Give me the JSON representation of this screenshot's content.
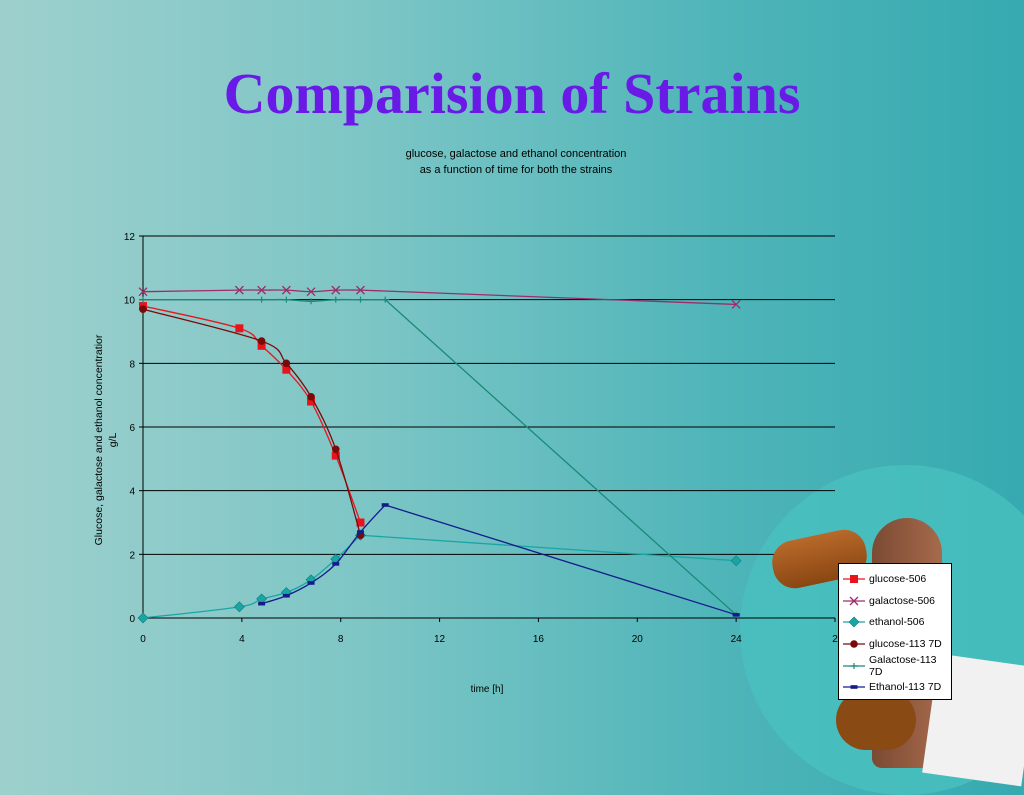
{
  "slide": {
    "title": "Comparision of Strains"
  },
  "colors": {
    "title": "#6a1ae6"
  },
  "chart_data": {
    "type": "line",
    "title": "glucose, galactose and ethanol concentration",
    "subtitle": "as a function of time for both the strains",
    "xlabel": "time [h]",
    "ylabel": "Glucose, galactose and ethanol concentratior",
    "ylabel2": "g/L",
    "xlim": [
      0,
      28
    ],
    "ylim": [
      0,
      12
    ],
    "x_ticks": [
      "0",
      "4",
      "8",
      "12",
      "16",
      "20",
      "24",
      "2"
    ],
    "y_ticks": [
      "0",
      "2",
      "4",
      "6",
      "8",
      "10",
      "12"
    ],
    "grid": "horizontal",
    "legend_position": "bottom-right",
    "series": [
      {
        "name": "glucose-506",
        "color": "#e8141c",
        "marker": "square",
        "x": [
          0,
          3.9,
          4.8,
          5.8,
          6.8,
          7.8,
          8.8
        ],
        "y": [
          9.8,
          9.1,
          8.55,
          7.8,
          6.8,
          5.1,
          3.0
        ]
      },
      {
        "name": "galactose-506",
        "color": "#9c2d6a",
        "marker": "x",
        "x": [
          0,
          3.9,
          4.8,
          5.8,
          6.8,
          7.8,
          8.8,
          24
        ],
        "y": [
          10.25,
          10.3,
          10.3,
          10.3,
          10.25,
          10.3,
          10.3,
          9.85
        ]
      },
      {
        "name": "ethanol-506",
        "color": "#1aa5a5",
        "marker": "diamond",
        "x": [
          0,
          3.9,
          4.8,
          5.8,
          6.8,
          7.8,
          8.8,
          24
        ],
        "y": [
          0,
          0.35,
          0.6,
          0.8,
          1.2,
          1.85,
          2.6,
          1.8
        ]
      },
      {
        "name": "glucose-113 7D",
        "color": "#7a0a0a",
        "marker": "circle",
        "x": [
          0,
          4.8,
          5.8,
          6.8,
          7.8,
          8.8
        ],
        "y": [
          9.7,
          8.7,
          8.0,
          6.95,
          5.3,
          2.6
        ]
      },
      {
        "name": "Galactose-113 7D",
        "color": "#1a8a78",
        "marker": "plus",
        "x": [
          0,
          4.8,
          5.8,
          6.8,
          7.8,
          8.8,
          9.8,
          24
        ],
        "y": [
          10.0,
          10.0,
          10.0,
          9.95,
          10.0,
          10.0,
          10.0,
          0.1
        ]
      },
      {
        "name": "Ethanol-113 7D",
        "color": "#141c8c",
        "marker": "dash",
        "x": [
          4.8,
          5.8,
          6.8,
          7.8,
          8.8,
          9.8,
          24
        ],
        "y": [
          0.45,
          0.7,
          1.1,
          1.7,
          2.7,
          3.55,
          0.1
        ]
      }
    ]
  }
}
